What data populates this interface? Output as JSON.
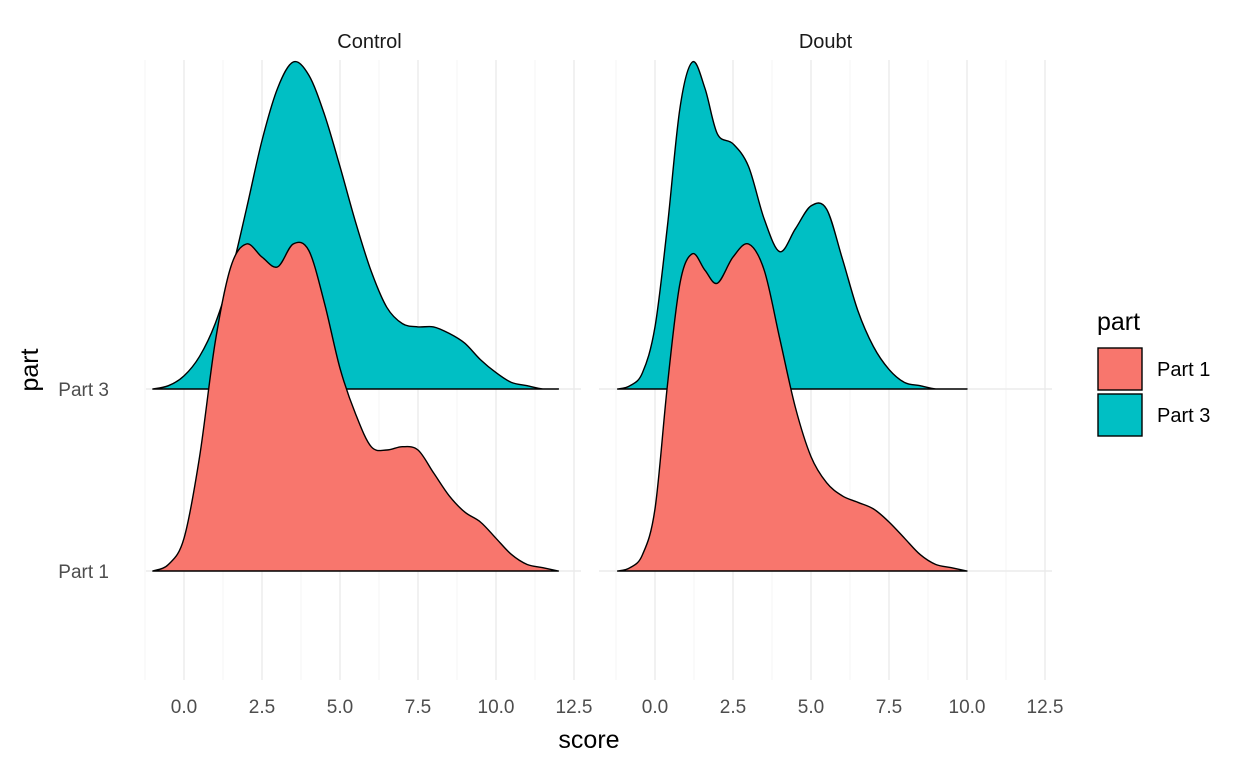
{
  "chart_data": {
    "type": "area",
    "subtype": "ridgeline",
    "xlabel": "score",
    "ylabel": "part",
    "x_ticks": [
      "0.0",
      "2.5",
      "5.0",
      "7.5",
      "10.0",
      "12.5"
    ],
    "x_tick_values": [
      0,
      2.5,
      5,
      7.5,
      10,
      12.5
    ],
    "xlim": [
      -1.2,
      13.0
    ],
    "y_categories": [
      "Part 1",
      "Part 3"
    ],
    "grid": true,
    "legend": {
      "title": "part",
      "position": "right",
      "entries": [
        {
          "label": "Part 1",
          "color": "#F8766D"
        },
        {
          "label": "Part 3",
          "color": "#00BFC4"
        }
      ]
    },
    "panels": [
      {
        "title": "Control",
        "series": [
          {
            "name": "Part 3",
            "color": "#00BFC4",
            "x": [
              -1.0,
              -0.5,
              0.0,
              0.5,
              1.0,
              1.5,
              2.0,
              2.5,
              3.0,
              3.5,
              4.0,
              4.5,
              5.0,
              5.5,
              6.0,
              6.5,
              7.0,
              7.5,
              8.0,
              8.5,
              9.0,
              9.5,
              10.0,
              10.5,
              11.0,
              11.5,
              12.0
            ],
            "height": [
              0.0,
              0.01,
              0.04,
              0.1,
              0.2,
              0.35,
              0.55,
              0.76,
              0.92,
              1.0,
              0.96,
              0.84,
              0.68,
              0.51,
              0.36,
              0.25,
              0.2,
              0.19,
              0.19,
              0.17,
              0.14,
              0.09,
              0.05,
              0.02,
              0.01,
              0.0,
              0.0
            ]
          },
          {
            "name": "Part 1",
            "color": "#F8766D",
            "x": [
              -1.0,
              -0.5,
              0.0,
              0.5,
              1.0,
              1.5,
              2.0,
              2.5,
              3.0,
              3.5,
              4.0,
              4.5,
              5.0,
              5.5,
              6.0,
              6.5,
              7.0,
              7.5,
              8.0,
              8.5,
              9.0,
              9.5,
              10.0,
              10.5,
              11.0,
              11.5,
              12.0
            ],
            "height": [
              0.0,
              0.02,
              0.1,
              0.35,
              0.7,
              0.93,
              1.0,
              0.96,
              0.93,
              1.0,
              0.98,
              0.82,
              0.62,
              0.48,
              0.38,
              0.37,
              0.38,
              0.37,
              0.3,
              0.23,
              0.18,
              0.15,
              0.1,
              0.05,
              0.02,
              0.01,
              0.0
            ]
          }
        ]
      },
      {
        "title": "Doubt",
        "series": [
          {
            "name": "Part 3",
            "color": "#00BFC4",
            "x": [
              -1.2,
              -0.8,
              -0.4,
              0.0,
              0.4,
              0.8,
              1.2,
              1.6,
              2.0,
              2.5,
              3.0,
              3.5,
              4.0,
              4.5,
              5.0,
              5.5,
              6.0,
              6.5,
              7.0,
              7.5,
              8.0,
              8.5,
              9.0,
              9.5,
              10.0
            ],
            "height": [
              0.0,
              0.01,
              0.05,
              0.19,
              0.5,
              0.86,
              1.0,
              0.92,
              0.78,
              0.75,
              0.68,
              0.52,
              0.42,
              0.49,
              0.56,
              0.55,
              0.4,
              0.24,
              0.13,
              0.06,
              0.02,
              0.01,
              0.0,
              0.0,
              0.0
            ]
          },
          {
            "name": "Part 1",
            "color": "#F8766D",
            "x": [
              -1.2,
              -0.8,
              -0.4,
              0.0,
              0.4,
              0.8,
              1.2,
              1.6,
              2.0,
              2.5,
              3.0,
              3.5,
              4.0,
              4.5,
              5.0,
              5.5,
              6.0,
              6.5,
              7.0,
              7.5,
              8.0,
              8.5,
              9.0,
              9.5,
              10.0
            ],
            "height": [
              0.0,
              0.01,
              0.05,
              0.19,
              0.57,
              0.88,
              0.97,
              0.92,
              0.88,
              0.96,
              1.0,
              0.92,
              0.71,
              0.5,
              0.35,
              0.27,
              0.23,
              0.21,
              0.19,
              0.15,
              0.1,
              0.05,
              0.02,
              0.01,
              0.0
            ]
          }
        ]
      }
    ]
  }
}
